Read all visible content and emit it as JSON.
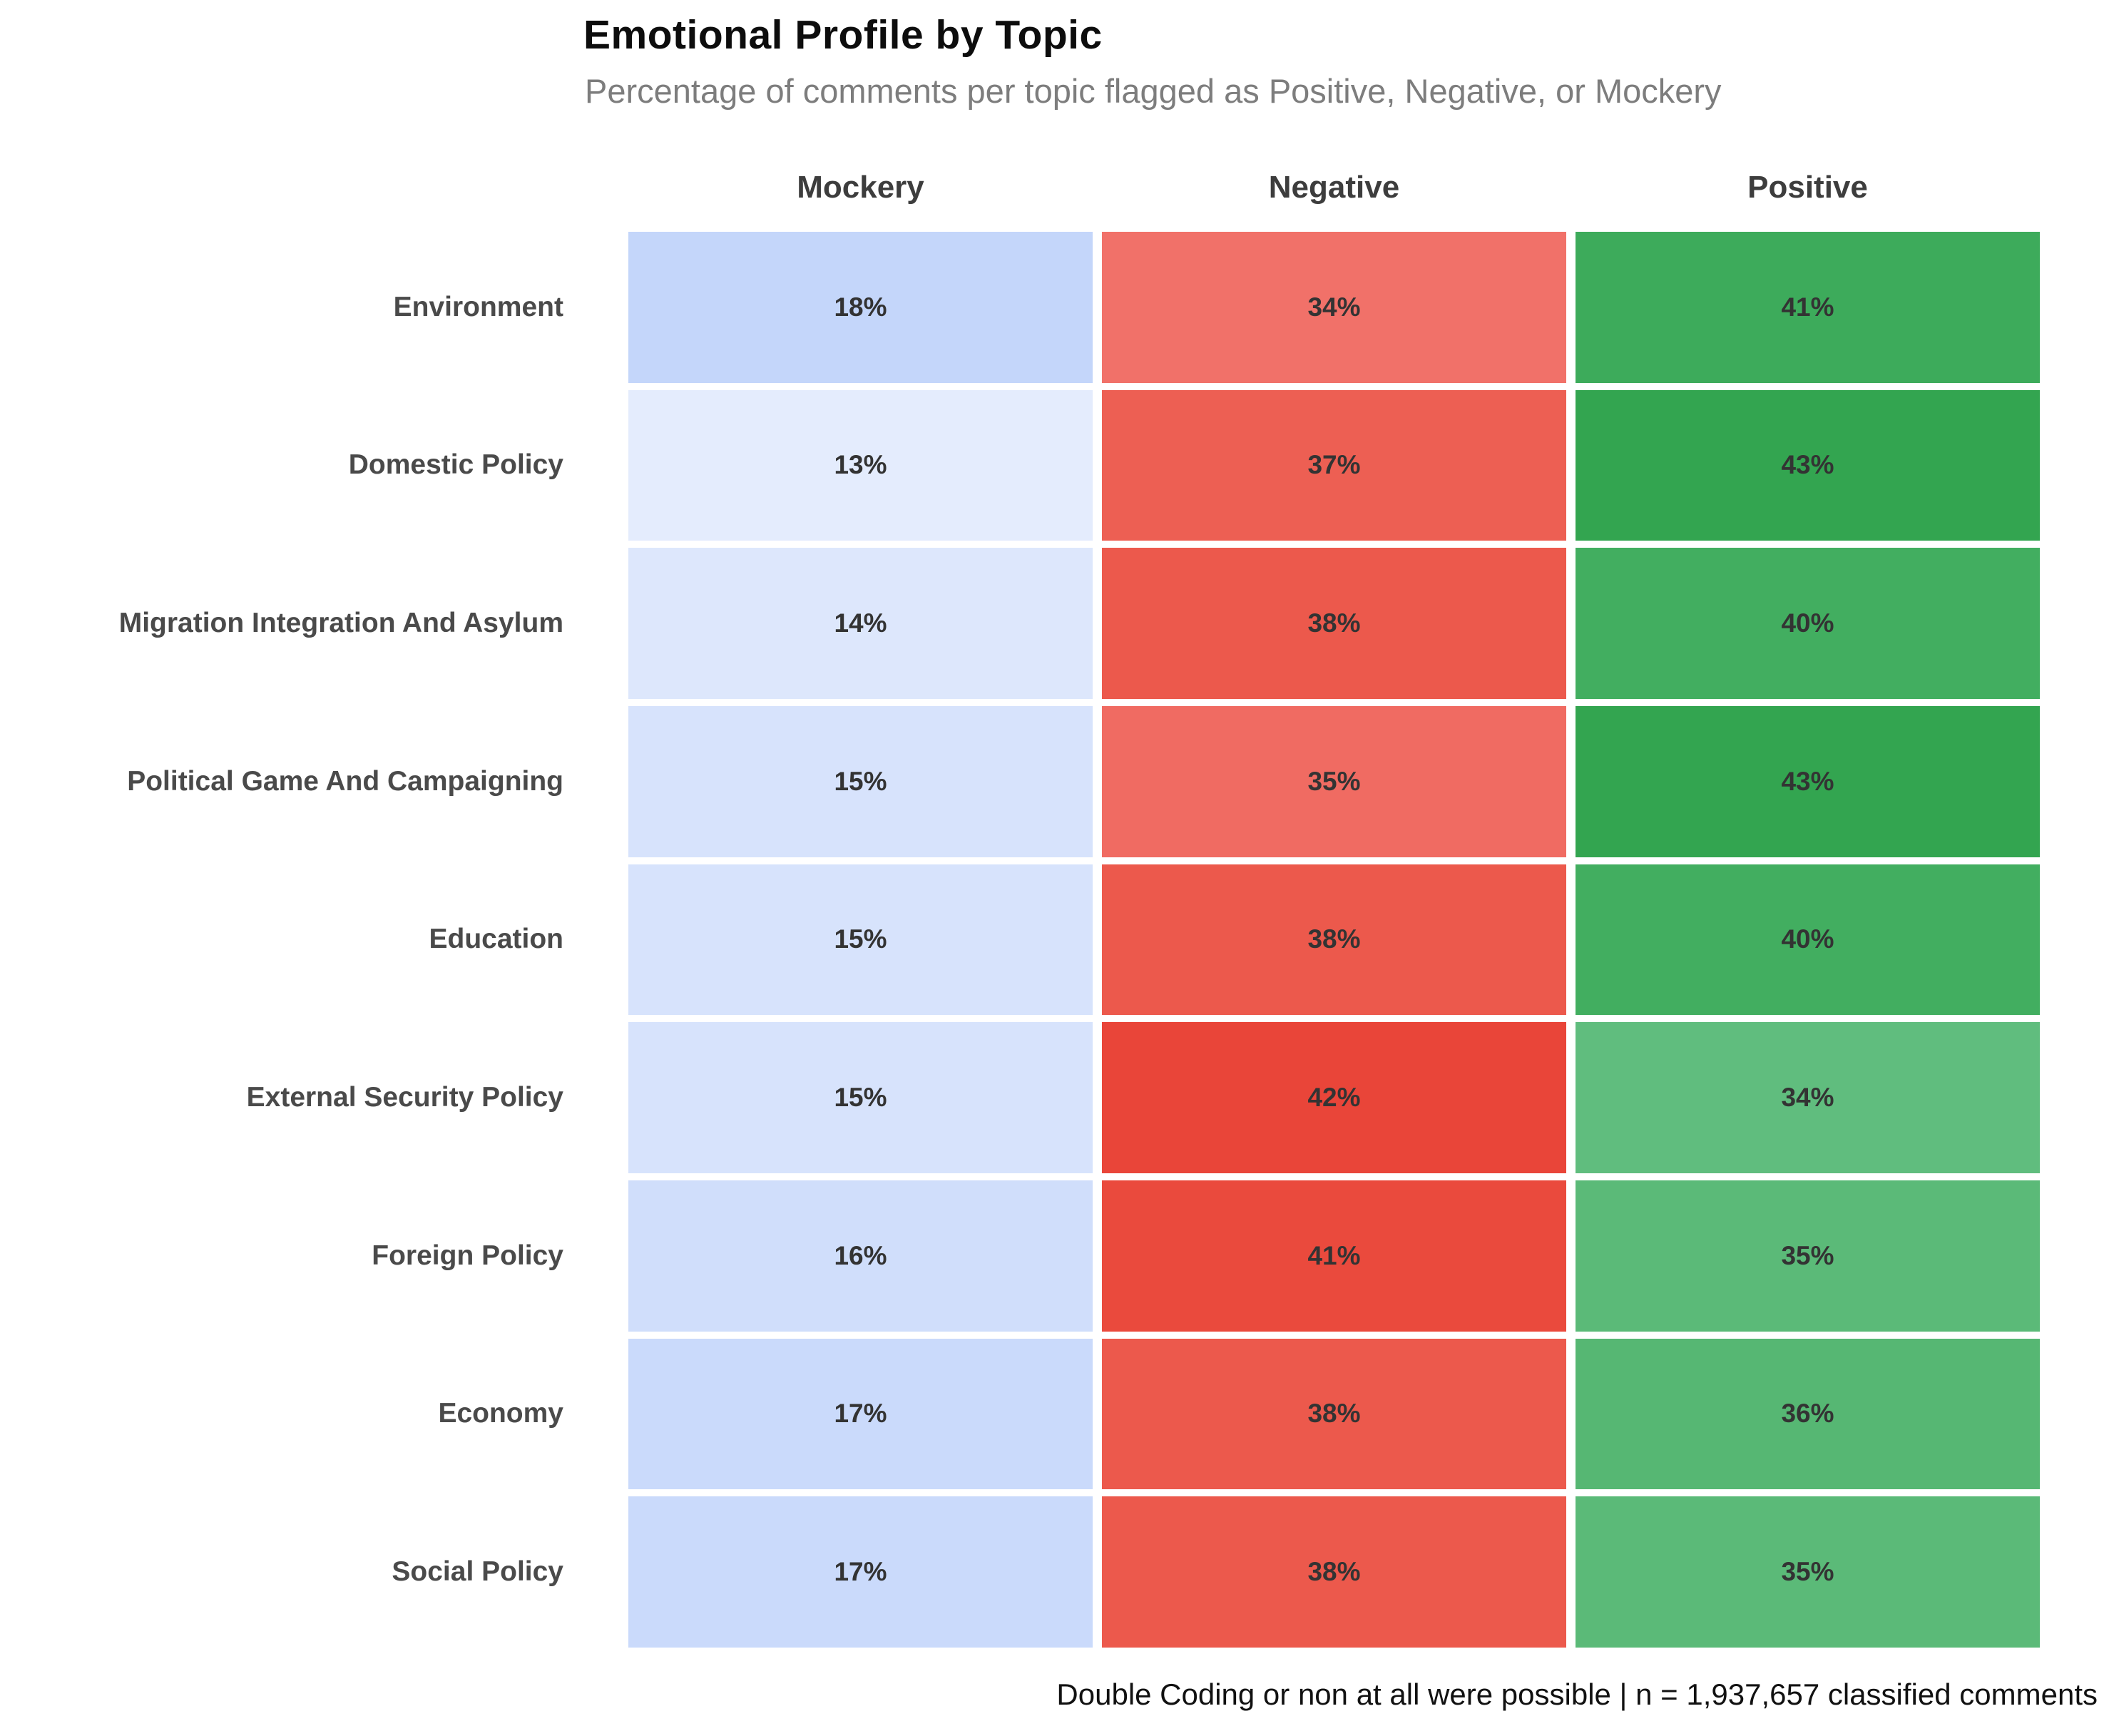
{
  "title": "Emotional Profile by Topic",
  "subtitle": "Percentage of comments per topic flagged as Positive, Negative, or Mockery",
  "footer": "Double Coding or non at all were possible | n = 1,937,657 classified comments",
  "colors": {
    "background": "#ffffff",
    "title": "#0d0d0d",
    "subtitle": "#7d7d7d",
    "column_header": "#3d3d3d",
    "row_label": "#4a4a4a",
    "cell_value_text": "#333333",
    "mockery_scale_low": "#e4ecfd",
    "mockery_scale_high": "#c4d6fa",
    "negative_scale_low": "#f17169",
    "negative_scale_high": "#e94539",
    "positive_scale_low": "#60bd7e",
    "positive_scale_high": "#33a550"
  },
  "chart_data": {
    "type": "heatmap",
    "title": "Emotional Profile by Topic",
    "subtitle": "Percentage of comments per topic flagged as Positive, Negative, or Mockery",
    "caption": "Double Coding or non at all were possible | n = 1,937,657 classified comments",
    "n_classified_comments": 1937657,
    "columns": [
      "Mockery",
      "Negative",
      "Positive"
    ],
    "rows": [
      "Environment",
      "Domestic Policy",
      "Migration Integration And Asylum",
      "Political Game And Campaigning",
      "Education",
      "External Security Policy",
      "Foreign Policy",
      "Economy",
      "Social Policy"
    ],
    "values": [
      [
        18,
        34,
        41
      ],
      [
        13,
        37,
        43
      ],
      [
        14,
        38,
        40
      ],
      [
        15,
        35,
        43
      ],
      [
        15,
        38,
        40
      ],
      [
        15,
        42,
        34
      ],
      [
        16,
        41,
        35
      ],
      [
        17,
        38,
        36
      ],
      [
        17,
        38,
        35
      ]
    ],
    "values_display": [
      [
        "18%",
        "34%",
        "41%"
      ],
      [
        "13%",
        "37%",
        "43%"
      ],
      [
        "14%",
        "38%",
        "40%"
      ],
      [
        "15%",
        "35%",
        "43%"
      ],
      [
        "15%",
        "38%",
        "40%"
      ],
      [
        "15%",
        "42%",
        "34%"
      ],
      [
        "16%",
        "41%",
        "35%"
      ],
      [
        "17%",
        "38%",
        "36%"
      ],
      [
        "17%",
        "38%",
        "35%"
      ]
    ],
    "cell_colors": [
      [
        "#c4d6fa",
        "#f17169",
        "#3dab5b"
      ],
      [
        "#e4ecfd",
        "#ed5f53",
        "#33a550"
      ],
      [
        "#dde7fc",
        "#ec594c",
        "#42ae60"
      ],
      [
        "#d7e3fc",
        "#f06b62",
        "#33a550"
      ],
      [
        "#d7e3fc",
        "#ec594c",
        "#42ae60"
      ],
      [
        "#d7e3fc",
        "#e94539",
        "#60bd7e"
      ],
      [
        "#d0defb",
        "#ea4a3d",
        "#5bba78"
      ],
      [
        "#cadafb",
        "#ec594c",
        "#56b773"
      ],
      [
        "#cadafb",
        "#ec594c",
        "#5bba78"
      ]
    ],
    "value_format": "percent",
    "legend": "none",
    "grid": "white-gaps-between-cells",
    "row_labels_position": "left",
    "column_labels_position": "top"
  }
}
